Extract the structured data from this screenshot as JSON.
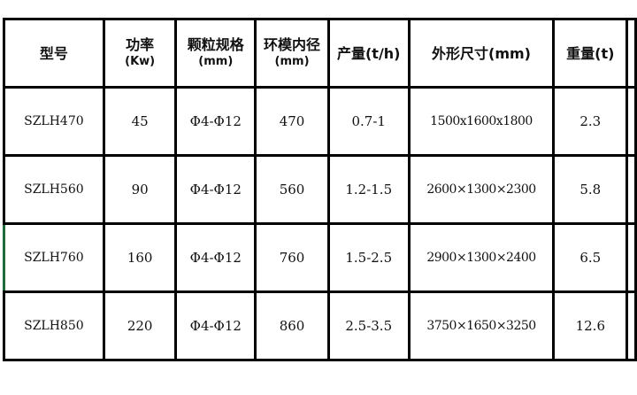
{
  "headers": [
    {
      "main": "型号",
      "sub": ""
    },
    {
      "main": "功率",
      "sub": "(Kw)"
    },
    {
      "main": "颗粒规格",
      "sub": "(mm)"
    },
    {
      "main": "环模内径",
      "sub": "(mm)"
    },
    {
      "main": "产量(t/h)",
      "sub": ""
    },
    {
      "main": "外形尺寸(mm)",
      "sub": ""
    },
    {
      "main": "重量(t)",
      "sub": ""
    }
  ],
  "rows": [
    [
      "SZLH470",
      "45",
      "Φ4-Φ12",
      "470",
      "0.7-1",
      "1500x1600x1800",
      "2.3"
    ],
    [
      "SZLH560",
      "90",
      "Φ4-Φ12",
      "560",
      "1.2-1.5",
      "2600×1300×2300",
      "5.8"
    ],
    [
      "SZLH760",
      "160",
      "Φ4-Φ12",
      "760",
      "1.5-2.5",
      "2900×1300×2400",
      "6.5"
    ],
    [
      "SZLH850",
      "220",
      "Φ4-Φ12",
      "860",
      "2.5-3.5",
      "3750×1650×3250",
      "12.6"
    ]
  ]
}
